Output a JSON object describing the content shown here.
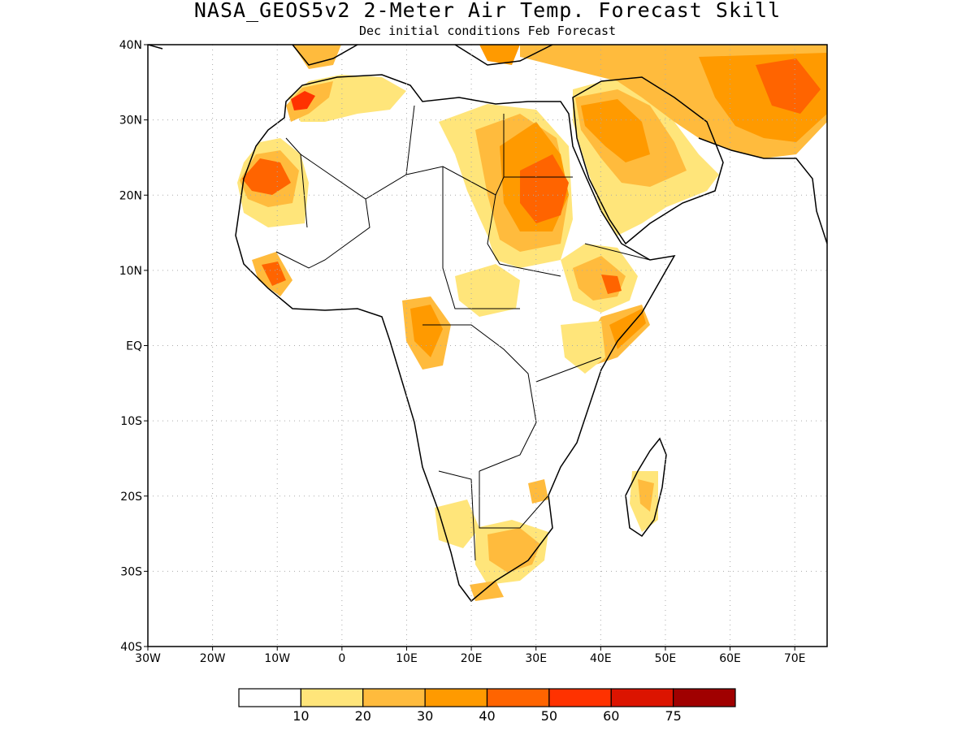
{
  "title": "NASA_GEOS5v2 2-Meter Air Temp. Forecast Skill",
  "subtitle": "Dec initial conditions  Feb Forecast",
  "map": {
    "lon_range": [
      -30,
      75
    ],
    "lat_range": [
      -40,
      40
    ],
    "lon_ticks": [
      {
        "value": -30,
        "label": "30W"
      },
      {
        "value": -20,
        "label": "20W"
      },
      {
        "value": -10,
        "label": "10W"
      },
      {
        "value": 0,
        "label": "0"
      },
      {
        "value": 10,
        "label": "10E"
      },
      {
        "value": 20,
        "label": "20E"
      },
      {
        "value": 30,
        "label": "30E"
      },
      {
        "value": 40,
        "label": "40E"
      },
      {
        "value": 50,
        "label": "50E"
      },
      {
        "value": 60,
        "label": "60E"
      },
      {
        "value": 70,
        "label": "70E"
      }
    ],
    "lat_ticks": [
      {
        "value": 40,
        "label": "40N"
      },
      {
        "value": 30,
        "label": "30N"
      },
      {
        "value": 20,
        "label": "20N"
      },
      {
        "value": 10,
        "label": "10N"
      },
      {
        "value": 0,
        "label": "EQ"
      },
      {
        "value": -10,
        "label": "10S"
      },
      {
        "value": -20,
        "label": "20S"
      },
      {
        "value": -30,
        "label": "30S"
      },
      {
        "value": -40,
        "label": "40S"
      }
    ],
    "grid": true,
    "grid_style": "dotted"
  },
  "legend": {
    "colors": [
      "#ffffff",
      "#ffe57a",
      "#ffbb3d",
      "#ff9a00",
      "#ff6400",
      "#ff3200",
      "#dc1400",
      "#a00000"
    ],
    "labels": [
      "10",
      "20",
      "30",
      "40",
      "50",
      "60",
      "75"
    ]
  }
}
